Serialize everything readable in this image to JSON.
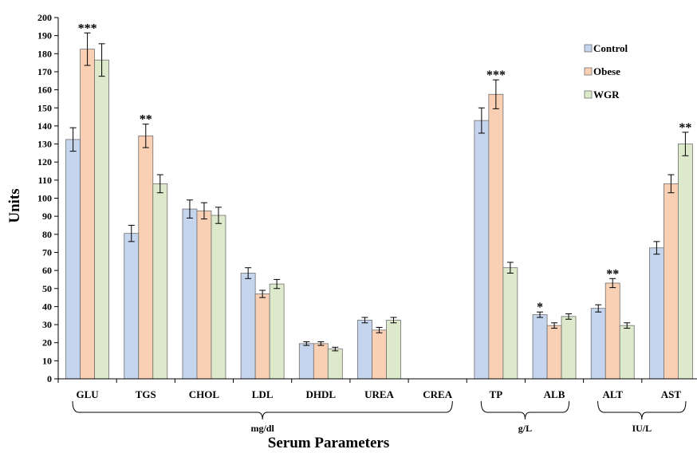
{
  "chart_data": {
    "type": "bar",
    "ylabel": "Units",
    "xlabel": "Serum Parameters",
    "ylim": [
      0,
      200
    ],
    "yticks": [
      "0",
      "10",
      "20",
      "30",
      "40",
      "50",
      "60",
      "70",
      "80",
      "90",
      "100",
      "110",
      "120",
      "130",
      "140",
      "150",
      "160",
      "170",
      "180",
      "190",
      "200"
    ],
    "categories": [
      "GLU",
      "TGS",
      "CHOL",
      "LDL",
      "DHDL",
      "UREA",
      "CREA",
      "TP",
      "ALB",
      "ALT",
      "AST"
    ],
    "series": [
      {
        "name": "Control",
        "color": "#c6d5ee",
        "values": [
          132.5,
          80.5,
          94,
          58.5,
          19.5,
          32.5,
          0,
          143,
          35.5,
          39,
          72.5
        ],
        "errors": [
          6.5,
          4.5,
          5,
          3,
          1,
          1.5,
          0,
          7,
          1.5,
          2,
          3.5
        ]
      },
      {
        "name": "Obese",
        "color": "#fad0b4",
        "values": [
          182.5,
          134.5,
          93,
          47,
          19.5,
          27,
          0,
          157.5,
          29.5,
          53,
          108
        ],
        "errors": [
          9,
          6.5,
          4.5,
          2,
          1,
          1.5,
          0,
          8,
          1.5,
          2.5,
          5
        ]
      },
      {
        "name": "WGR",
        "color": "#dde9cb",
        "values": [
          176.5,
          108,
          90.5,
          52.5,
          16.5,
          32.5,
          0,
          61.5,
          34.5,
          29.5,
          130
        ],
        "errors": [
          9,
          5,
          4.5,
          2.5,
          1,
          1.5,
          0,
          3,
          1.5,
          1.5,
          6.5
        ]
      }
    ],
    "significance": [
      {
        "category": "GLU",
        "series": "Obese",
        "mark": "***"
      },
      {
        "category": "TGS",
        "series": "Obese",
        "mark": "**"
      },
      {
        "category": "TP",
        "series": "Obese",
        "mark": "***"
      },
      {
        "category": "ALB",
        "series": "Control",
        "mark": "*"
      },
      {
        "category": "ALT",
        "series": "Obese",
        "mark": "**"
      },
      {
        "category": "AST",
        "series": "WGR",
        "mark": "**"
      }
    ],
    "unit_groups": [
      {
        "label": "mg/dl",
        "from": "GLU",
        "to": "CREA"
      },
      {
        "label": "g/L",
        "from": "TP",
        "to": "ALB"
      },
      {
        "label": "IU/L",
        "from": "ALT",
        "to": "AST"
      }
    ],
    "legend_position": "top-right",
    "grid": false
  }
}
